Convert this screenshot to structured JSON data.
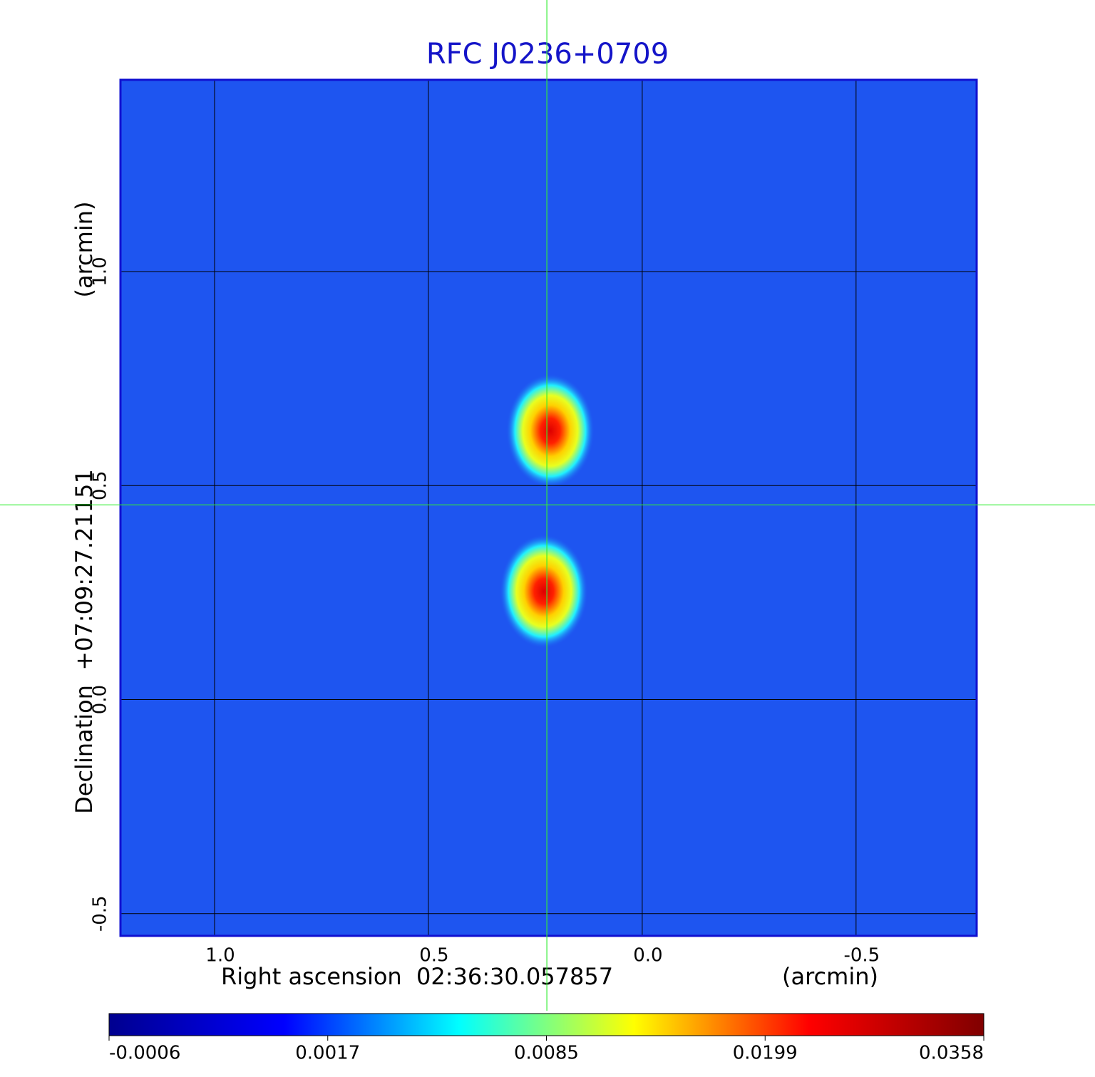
{
  "chart_data": {
    "type": "image",
    "title": "RFC J0236+0709",
    "x_label": "Right ascension  02:36:30.057857",
    "x_unit": "(arcmin)",
    "y_label": "Declination  +07:09:27.21151",
    "y_unit": "(arcmin)",
    "xlim": [
      1.22,
      -0.782
    ],
    "ylim": [
      -0.552,
      1.448
    ],
    "xticks": [
      {
        "value": 1,
        "label": "1.0"
      },
      0.5,
      {
        "value": 0,
        "label": "0.0"
      },
      -0.5
    ],
    "yticks": [
      {
        "value": 1,
        "label": "1.0"
      },
      0.5,
      {
        "value": 0,
        "label": "0.0"
      },
      -0.5
    ],
    "grid": true,
    "background_color": "#1e55f0",
    "crosshair": {
      "x": 0.223,
      "y": 0.455,
      "color": "#33ee33"
    },
    "sources": [
      {
        "x": 0.215,
        "y": 0.628,
        "peak": 0.0358
      },
      {
        "x": 0.23,
        "y": 0.253,
        "peak": 0.0358
      }
    ],
    "colorbar": {
      "ticks": [
        -0.0006,
        0.0017,
        0.0085,
        0.0199,
        0.0358
      ],
      "colors": [
        "#00008f",
        "#0000ff",
        "#00ffff",
        "#ffff00",
        "#ff0000",
        "#800000"
      ]
    }
  }
}
